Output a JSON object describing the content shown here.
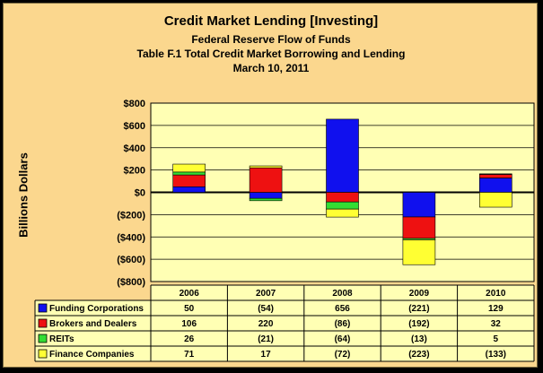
{
  "chart_data": {
    "type": "bar",
    "stacked": true,
    "title": "Credit Market Lending [Investing]",
    "subtitle_lines": [
      "Federal Reserve Flow of Funds",
      "Table F.1 Total Credit Market Borrowing and Lending",
      "March 10, 2011"
    ],
    "ylabel": "Billions Dollars",
    "ylim": [
      -800,
      800
    ],
    "ytick_values": [
      800,
      600,
      400,
      200,
      0,
      -200,
      -400,
      -600,
      -800
    ],
    "ytick_labels": [
      "$800",
      "$600",
      "$400",
      "$200",
      "$0",
      "($200)",
      "($400)",
      "($600)",
      "($800)"
    ],
    "grid": true,
    "legend_placement": "data-table",
    "categories": [
      "2006",
      "2007",
      "2008",
      "2009",
      "2010"
    ],
    "series": [
      {
        "name": "Funding Corporations",
        "color": "#1010ee",
        "values": [
          50,
          -54,
          656,
          -221,
          129
        ],
        "labels": [
          "50",
          "(54)",
          "656",
          "(221)",
          "129"
        ]
      },
      {
        "name": "Brokers and Dealers",
        "color": "#ee1111",
        "values": [
          106,
          220,
          -86,
          -192,
          32
        ],
        "labels": [
          "106",
          "220",
          "(86)",
          "(192)",
          "32"
        ]
      },
      {
        "name": "REITs",
        "color": "#33dd33",
        "values": [
          26,
          -21,
          -64,
          -13,
          5
        ],
        "labels": [
          "26",
          "(21)",
          "(64)",
          "(13)",
          "5"
        ]
      },
      {
        "name": "Finance Companies",
        "color": "#ffff33",
        "values": [
          71,
          17,
          -72,
          -223,
          -133
        ],
        "labels": [
          "71",
          "17",
          "(72)",
          "(223)",
          "(133)"
        ]
      }
    ],
    "colors": {
      "frame_background": "#fbd78e",
      "plot_background": "#ffffb4",
      "gridline": "#000000"
    }
  }
}
